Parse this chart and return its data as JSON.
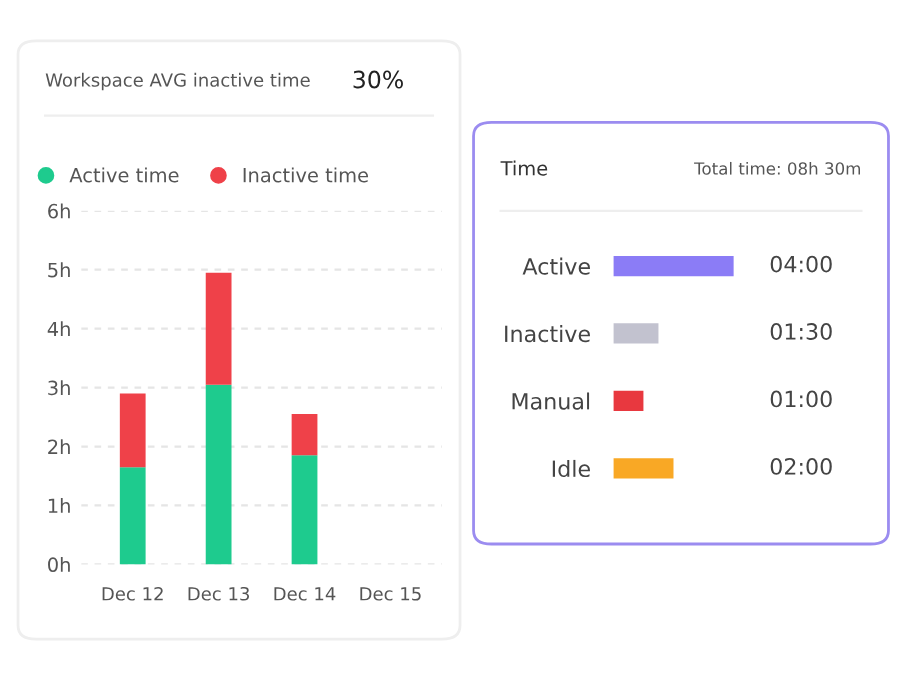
{
  "chart_data": [
    {
      "type": "bar",
      "title": "Workspace AVG inactive time",
      "annotations": [
        "30%"
      ],
      "stacked": true,
      "categories": [
        "Dec 12",
        "Dec 13",
        "Dec 14",
        "Dec 15"
      ],
      "series": [
        {
          "name": "Active time",
          "color": "#1ecb8e",
          "values": [
            1.65,
            3.05,
            1.85,
            null
          ]
        },
        {
          "name": "Inactive time",
          "color": "#ef4149",
          "values": [
            1.25,
            1.9,
            0.7,
            null
          ]
        }
      ],
      "ylim": [
        0,
        6
      ],
      "yticks": [
        {
          "value": 0,
          "label": "0h"
        },
        {
          "value": 1,
          "label": "1h"
        },
        {
          "value": 2,
          "label": "2h"
        },
        {
          "value": 3,
          "label": "3h"
        },
        {
          "value": 4,
          "label": "4h"
        },
        {
          "value": 5,
          "label": "5h"
        },
        {
          "value": 6,
          "label": "6h"
        }
      ],
      "grid": "y",
      "legend": "top"
    },
    {
      "type": "bar",
      "orientation": "horizontal",
      "title": "Time",
      "annotations": [
        "Total time: 08h 30m"
      ],
      "categories": [
        "Active",
        "Inactive",
        "Manual",
        "Idle"
      ],
      "values": [
        4,
        1.5,
        1,
        2
      ],
      "colors": [
        "#8b7cf6",
        "#c2c2cf",
        "#e8383f",
        "#f9a825"
      ],
      "value_labels": [
        "04:00",
        "01:30",
        "01:00",
        "02:00"
      ]
    }
  ]
}
